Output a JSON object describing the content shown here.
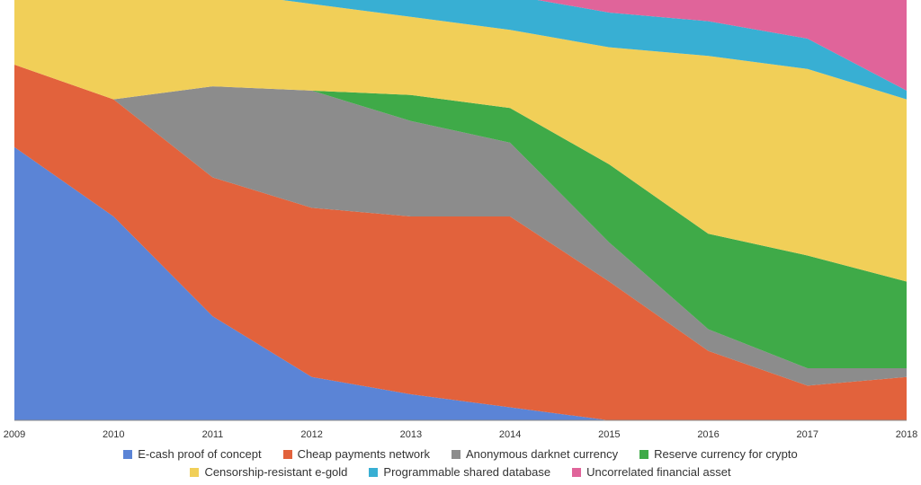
{
  "chart_data": {
    "type": "area",
    "stacked": true,
    "normalized_percent": true,
    "x": [
      "2009",
      "2010",
      "2011",
      "2012",
      "2013",
      "2014",
      "2015",
      "2016",
      "2017",
      "2018"
    ],
    "series": [
      {
        "name": "E-cash proof of concept",
        "color": "#5b84d6",
        "values": [
          63,
          47,
          24,
          10,
          6,
          3,
          0,
          0,
          0,
          0
        ]
      },
      {
        "name": "Cheap payments network",
        "color": "#e2623c",
        "values": [
          19,
          27,
          32,
          39,
          41,
          44,
          32,
          16,
          8,
          10
        ]
      },
      {
        "name": "Anonymous darknet currency",
        "color": "#8c8c8c",
        "values": [
          0,
          0,
          21,
          27,
          22,
          17,
          9,
          5,
          4,
          2
        ]
      },
      {
        "name": "Reserve currency for crypto",
        "color": "#3faa48",
        "values": [
          0,
          0,
          0,
          0,
          6,
          8,
          18,
          22,
          26,
          20
        ]
      },
      {
        "name": "Censorship-resistant e-gold",
        "color": "#f1cf58",
        "values": [
          18,
          26,
          22,
          20,
          18,
          18,
          27,
          41,
          43,
          42
        ]
      },
      {
        "name": "Programmable shared database",
        "color": "#38afd3",
        "values": [
          0,
          0,
          1,
          4,
          6,
          8,
          8,
          8,
          7,
          2
        ]
      },
      {
        "name": "Uncorrelated financial asset",
        "color": "#e0649a",
        "values": [
          0,
          0,
          0,
          0,
          1,
          2,
          6,
          8,
          12,
          24
        ]
      }
    ],
    "ylim": [
      0,
      100
    ],
    "legend_position": "bottom",
    "grid": false
  }
}
